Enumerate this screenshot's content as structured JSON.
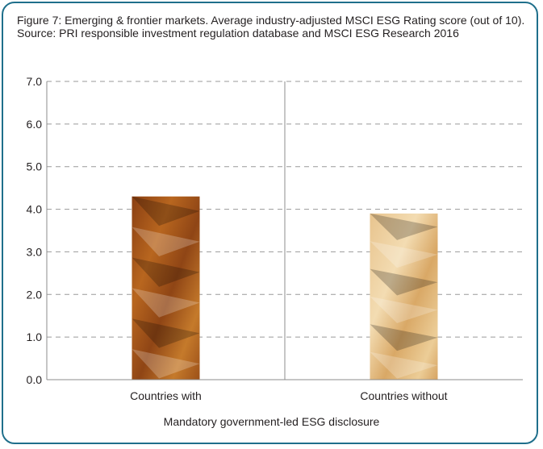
{
  "chart_data": {
    "type": "bar",
    "title": "Figure 7: Emerging & frontier markets. Average industry-adjusted MSCI ESG Rating score (out of 10). Source: PRI responsible investment regulation database and MSCI ESG Research 2016",
    "categories": [
      "Countries with",
      "Countries without"
    ],
    "values": [
      4.3,
      3.9
    ],
    "xlabel": "Mandatory government-led ESG disclosure",
    "ylabel": "",
    "ylim": [
      0,
      7
    ],
    "yticks": [
      "0.0",
      "1.0",
      "2.0",
      "3.0",
      "4.0",
      "5.0",
      "6.0",
      "7.0"
    ],
    "grid": true,
    "legend": "none",
    "colors": [
      "#a85a1c",
      "#e3bd84"
    ]
  }
}
